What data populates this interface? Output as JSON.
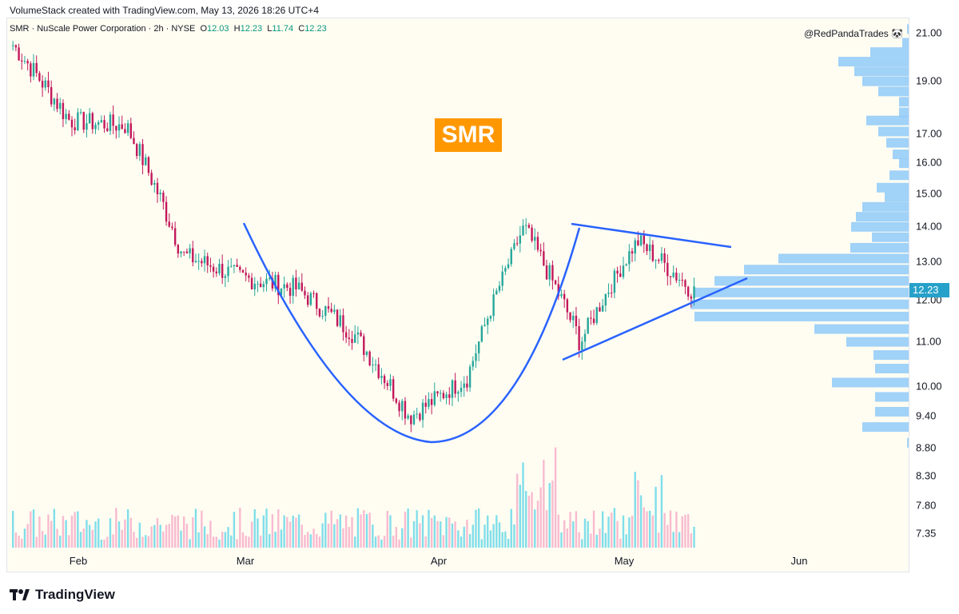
{
  "caption": "VolumeStack created with TradingView.com, May 13, 2026 18:26 UTC+4",
  "legend": {
    "symbol": "SMR · NuScale Power Corporation · 2h · NYSE",
    "open_label": "O",
    "open": "12.03",
    "high_label": "H",
    "high": "12.23",
    "low_label": "L",
    "low": "11.74",
    "close_label": "C",
    "close": "12.23"
  },
  "author": "@RedPandaTrades 🐼",
  "badge": "SMR",
  "footer": {
    "brand": "TradingView",
    "logo_icon": "tradingview-logo-icon"
  },
  "colors": {
    "up": "#26a69a",
    "down": "#c2185b",
    "trendline": "#2962ff",
    "volume_up": "#80deea",
    "volume_down": "#f8bbd0",
    "profile": "#90caf9",
    "badge": "#ff9800",
    "last_price": "#26a1c9"
  },
  "chart_data": {
    "type": "candlestick",
    "interval": "2h",
    "y_scale": "log",
    "price_ticks": [
      "21.00",
      "19.00",
      "17.00",
      "16.00",
      "15.00",
      "14.00",
      "13.00",
      "12.00",
      "11.00",
      "10.00",
      "9.40",
      "8.80",
      "8.30",
      "7.80",
      "7.35"
    ],
    "price_tick_values": [
      21.0,
      19.0,
      17.0,
      16.0,
      15.0,
      14.0,
      13.0,
      12.0,
      11.0,
      10.0,
      9.4,
      8.8,
      8.3,
      7.8,
      7.35
    ],
    "time_ticks": [
      "Feb",
      "Mar",
      "Apr",
      "May",
      "Jun"
    ],
    "last_price": "12.23",
    "price_path_approx": [
      {
        "t": "late Jan",
        "close": 20.5
      },
      {
        "t": "early Feb",
        "close": 17.5
      },
      {
        "t": "mid Feb",
        "close": 17.3
      },
      {
        "t": "late Feb",
        "close": 13.2
      },
      {
        "t": "early Mar",
        "close": 12.6
      },
      {
        "t": "mid Mar",
        "close": 12.3
      },
      {
        "t": "late Mar",
        "close": 11.2
      },
      {
        "t": "early Apr",
        "close": 9.4
      },
      {
        "t": "mid Apr",
        "close": 10.2
      },
      {
        "t": "late Apr",
        "close": 14.0
      },
      {
        "t": "early May",
        "close": 11.0
      },
      {
        "t": "mid May",
        "close": 13.6
      },
      {
        "t": "May 13",
        "close": 12.23
      }
    ],
    "annotations": [
      "rounded bottom curve",
      "upper descending trendline",
      "lower ascending trendline"
    ]
  }
}
